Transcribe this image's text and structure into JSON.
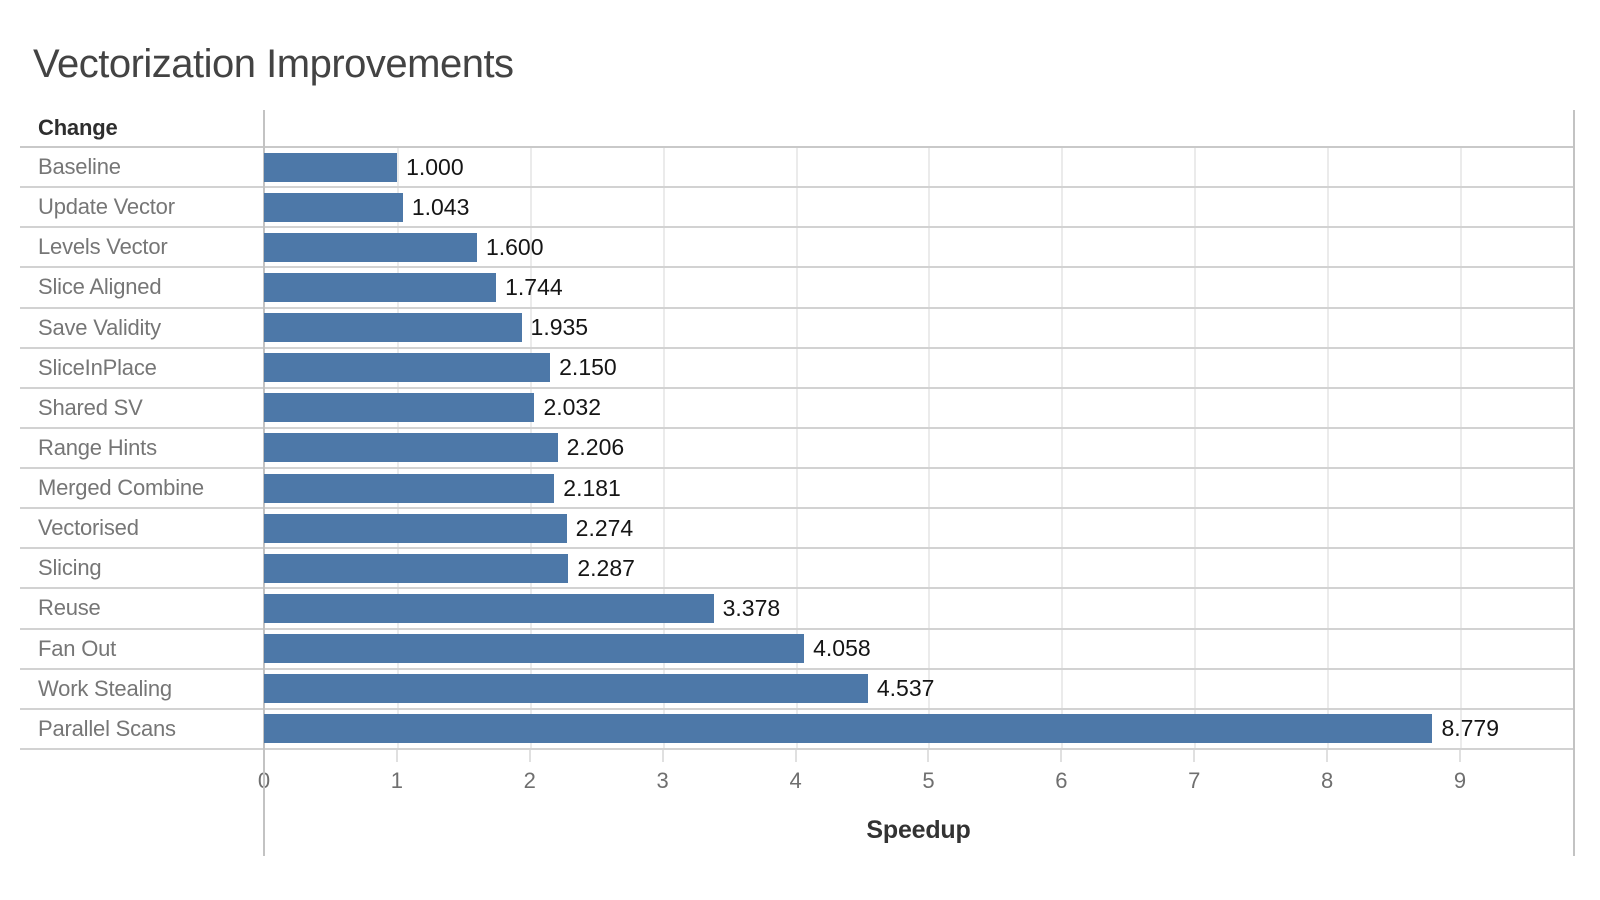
{
  "title": "Vectorization Improvements",
  "column_header": "Change",
  "colors": {
    "bar": "#4d78a8",
    "row_separator": "#d2d2d2",
    "plot_border": "#c3c3c3",
    "gridline": "#ebebeb",
    "category_label": "#767676",
    "value_label": "#151515",
    "tick_label": "#6f6f6f",
    "title_text": "#434343"
  },
  "chart_data": {
    "type": "bar",
    "orientation": "horizontal",
    "title": "Vectorization Improvements",
    "xlabel": "Speedup",
    "ylabel": "Change",
    "categories": [
      "Baseline",
      "Update Vector",
      "Levels Vector",
      "Slice Aligned",
      "Save Validity",
      "SliceInPlace",
      "Shared SV",
      "Range Hints",
      "Merged Combine",
      "Vectorised",
      "Slicing",
      "Reuse",
      "Fan Out",
      "Work Stealing",
      "Parallel Scans"
    ],
    "values": [
      1.0,
      1.043,
      1.6,
      1.744,
      1.935,
      2.15,
      2.032,
      2.206,
      2.181,
      2.274,
      2.287,
      3.378,
      4.058,
      4.537,
      8.779
    ],
    "value_labels": [
      "1.000",
      "1.043",
      "1.600",
      "1.744",
      "1.935",
      "2.150",
      "2.032",
      "2.206",
      "2.181",
      "2.274",
      "2.287",
      "3.378",
      "4.058",
      "4.537",
      "8.779"
    ],
    "x_ticks": [
      0,
      1,
      2,
      3,
      4,
      5,
      6,
      7,
      8,
      9
    ],
    "xlim": [
      0,
      9.85
    ],
    "grid": "vertical-gridlines-on",
    "legend": "none"
  }
}
